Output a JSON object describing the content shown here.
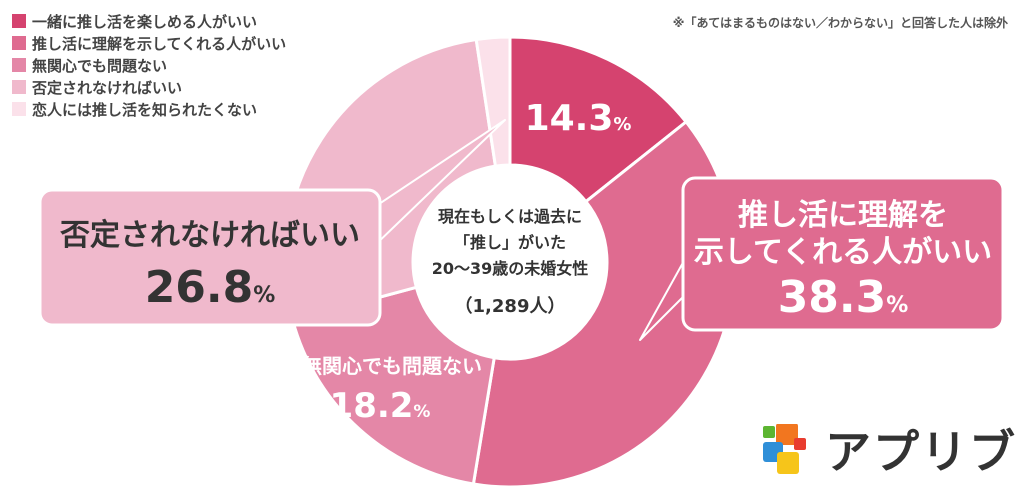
{
  "note": "※「あてはまるものはない／わからない」と回答した人は除外",
  "center_label": {
    "lines": [
      "現在もしくは過去に",
      "「推し」がいた",
      "20〜39歳の未婚女性"
    ],
    "count": "（1,289人）"
  },
  "brand": {
    "name": "アプリブ",
    "icon": "app-grid-logo-icon"
  },
  "chart_data": {
    "type": "pie",
    "variant": "donut",
    "title": "",
    "unit": "%",
    "categories": [
      "一緒に推し活を楽しめる人がいい",
      "推し活に理解を示してくれる人がいい",
      "無関心でも問題ない",
      "否定されなければいい",
      "恋人には推し活を知られたくない"
    ],
    "values": [
      14.3,
      38.3,
      18.2,
      26.8,
      2.4
    ],
    "colors": [
      "#d5436f",
      "#df6b90",
      "#e487a7",
      "#f0b9cc",
      "#fbe1ea"
    ],
    "legend_position": "top-left",
    "data_labels": [
      {
        "lines": [
          "14.3"
        ],
        "unit": "%"
      },
      {
        "lines": [
          "推し活に理解を",
          "示してくれる人がいい",
          "38.3"
        ],
        "unit": "%"
      },
      {
        "lines": [
          "無関心でも問題ない",
          "18.2"
        ],
        "unit": "%"
      },
      {
        "lines": [
          "否定されなければいい",
          "26.8"
        ],
        "unit": "%"
      },
      null
    ]
  }
}
